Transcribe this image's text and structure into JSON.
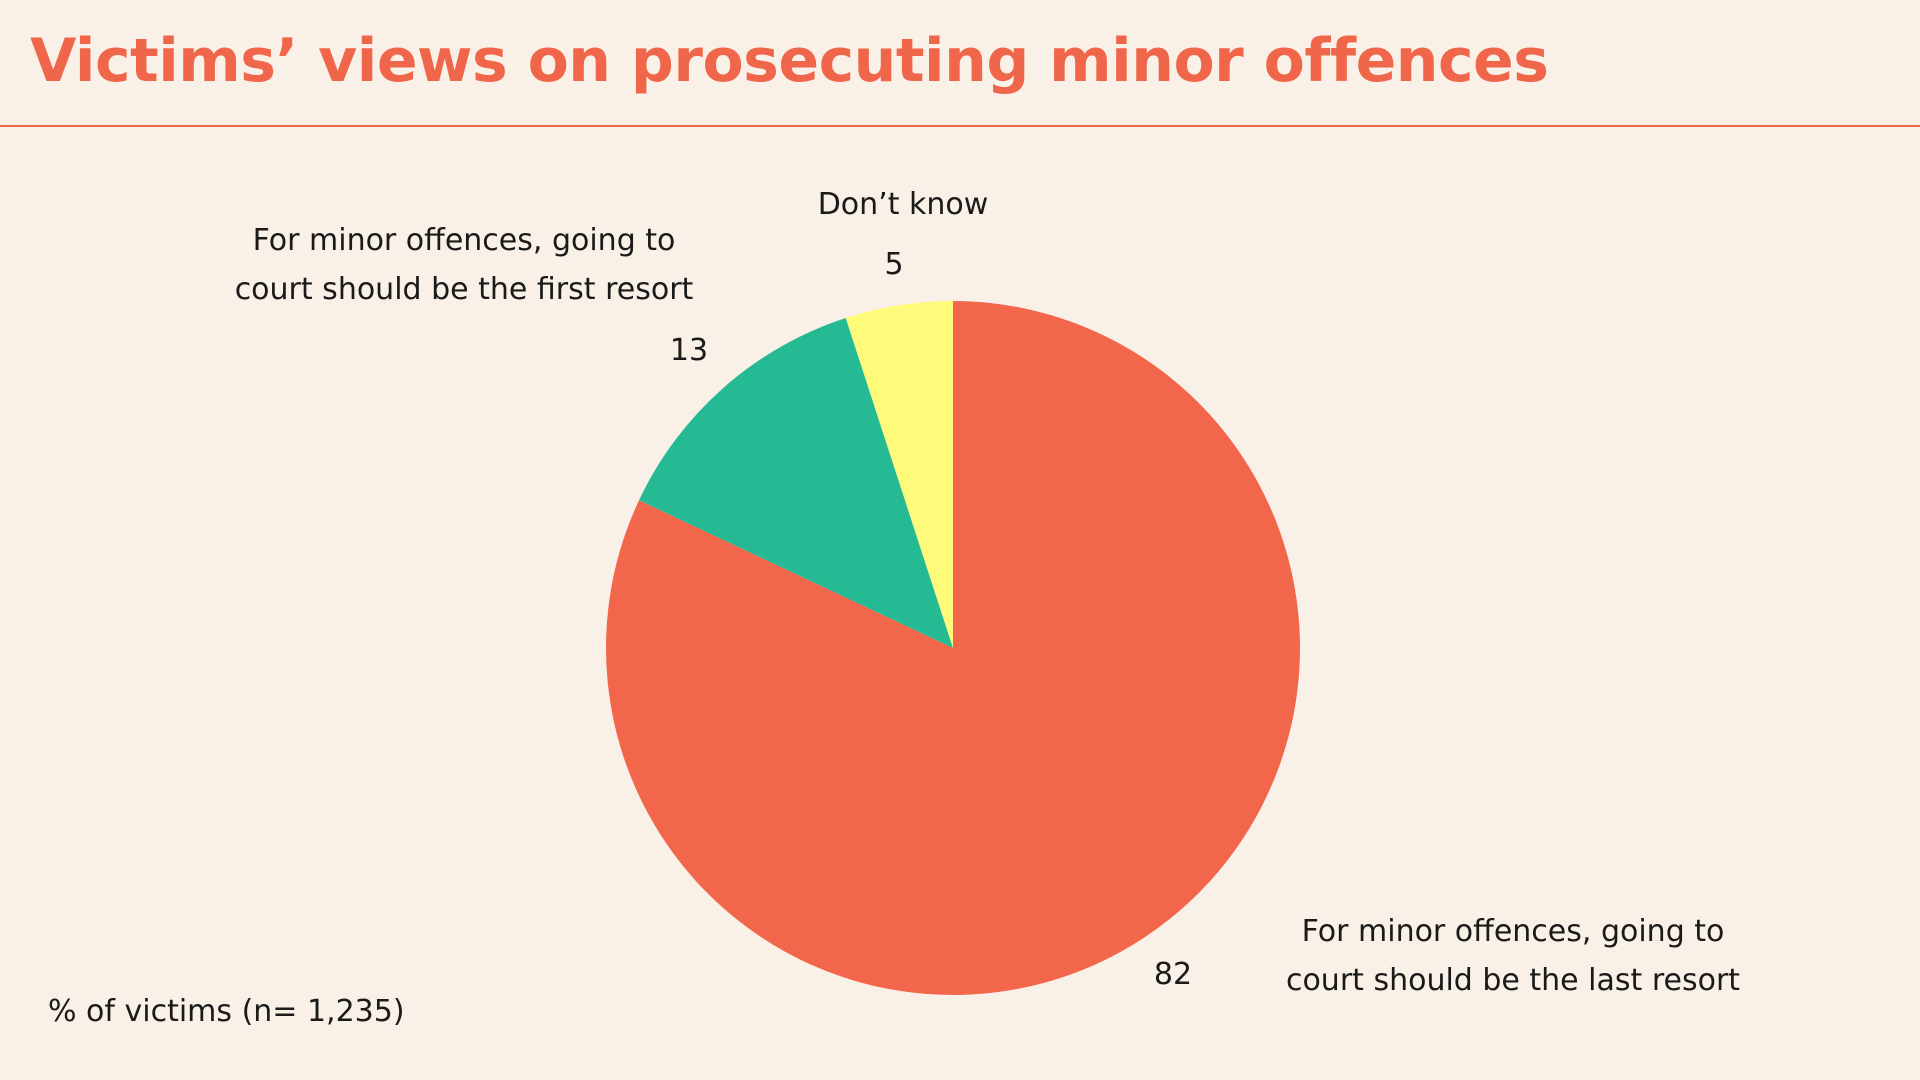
{
  "chart_data": {
    "type": "pie",
    "title": "Victims’ views on prosecuting minor offences",
    "footnote": "% of victims  (n= 1,235)",
    "start_angle_deg": 0,
    "direction": "clockwise",
    "slices": [
      {
        "label": "For minor offences, going to\ncourt should be the last resort",
        "value": 82,
        "value_label": "82",
        "color": "#F2674B"
      },
      {
        "label": "For minor offences, going to\ncourt should be the first resort",
        "value": 13,
        "value_label": "13",
        "color": "#25B994"
      },
      {
        "label": "Don’t know",
        "value": 5,
        "value_label": "5",
        "color": "#FFFB7A"
      }
    ]
  },
  "colors": {
    "background": "#F9F1E7",
    "title": "#F0664A",
    "rule": "#F0664A",
    "text": "#1A1A1A"
  }
}
